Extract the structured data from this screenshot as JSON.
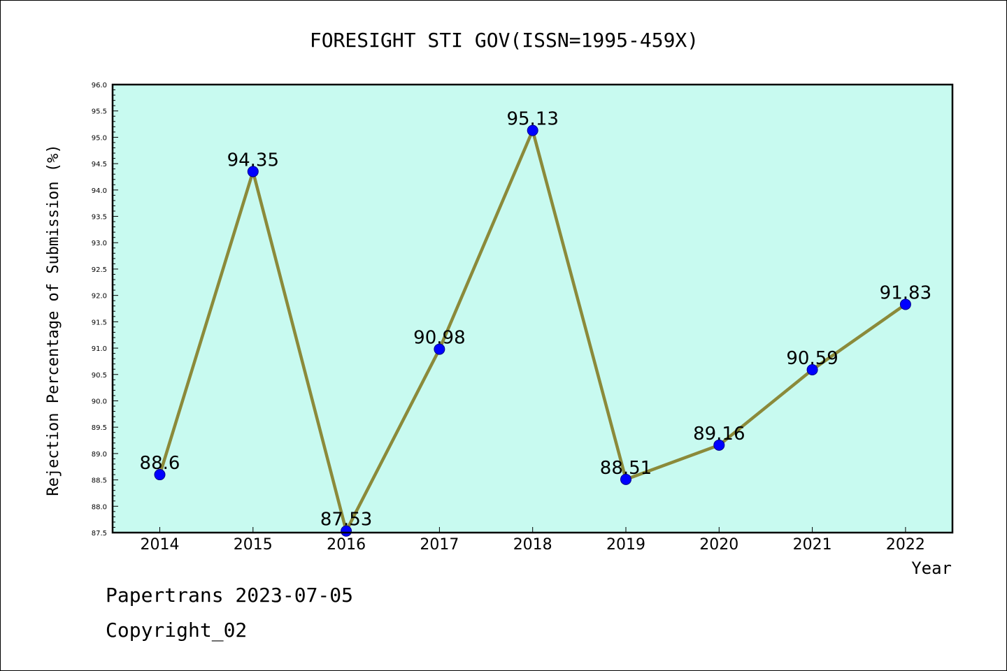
{
  "chart_data": {
    "type": "line",
    "title": "FORESIGHT STI GOV(ISSN=1995-459X)",
    "xlabel": "Year",
    "ylabel": "Rejection Percentage of Submission (%)",
    "categories": [
      "2014",
      "2015",
      "2016",
      "2017",
      "2018",
      "2019",
      "2020",
      "2021",
      "2022"
    ],
    "values": [
      88.6,
      94.35,
      87.53,
      90.98,
      95.13,
      88.51,
      89.16,
      90.59,
      91.83
    ],
    "data_labels": [
      "88.6",
      "94.35",
      "87.53",
      "90.98",
      "95.13",
      "88.51",
      "89.16",
      "90.59",
      "91.83"
    ],
    "ylim": [
      87.5,
      96.0
    ],
    "yticks": [
      "87.5",
      "88.0",
      "88.5",
      "89.0",
      "89.5",
      "90.0",
      "90.5",
      "91.0",
      "91.5",
      "92.0",
      "92.5",
      "93.0",
      "93.5",
      "94.0",
      "94.5",
      "95.0",
      "95.5",
      "96.0"
    ],
    "grid": false,
    "colors": {
      "plot_background": "#c8faf0",
      "line": "#8b8a3a",
      "marker": "#0000ff"
    }
  },
  "footer": {
    "line1": "Papertrans 2023-07-05",
    "line2": "Copyright_02"
  }
}
